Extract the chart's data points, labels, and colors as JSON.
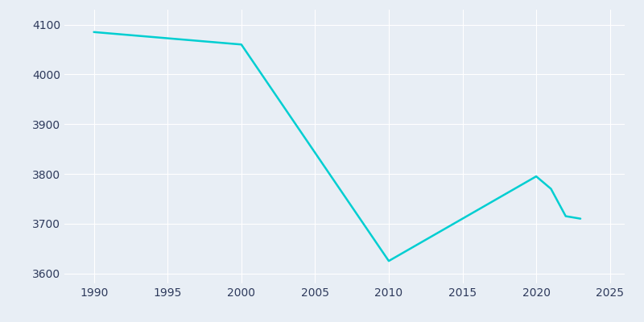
{
  "years": [
    1990,
    2000,
    2010,
    2020,
    2021,
    2022,
    2023
  ],
  "population": [
    4085,
    4060,
    3625,
    3795,
    3770,
    3715,
    3710
  ],
  "line_color": "#00CED1",
  "background_color": "#e8eef5",
  "grid_color": "#ffffff",
  "text_color": "#2e3a5c",
  "xlim": [
    1988,
    2026
  ],
  "ylim": [
    3580,
    4130
  ],
  "xticks": [
    1990,
    1995,
    2000,
    2005,
    2010,
    2015,
    2020,
    2025
  ],
  "yticks": [
    3600,
    3700,
    3800,
    3900,
    4000,
    4100
  ],
  "linewidth": 1.8,
  "figsize": [
    8.0,
    4.0
  ],
  "dpi": 100
}
